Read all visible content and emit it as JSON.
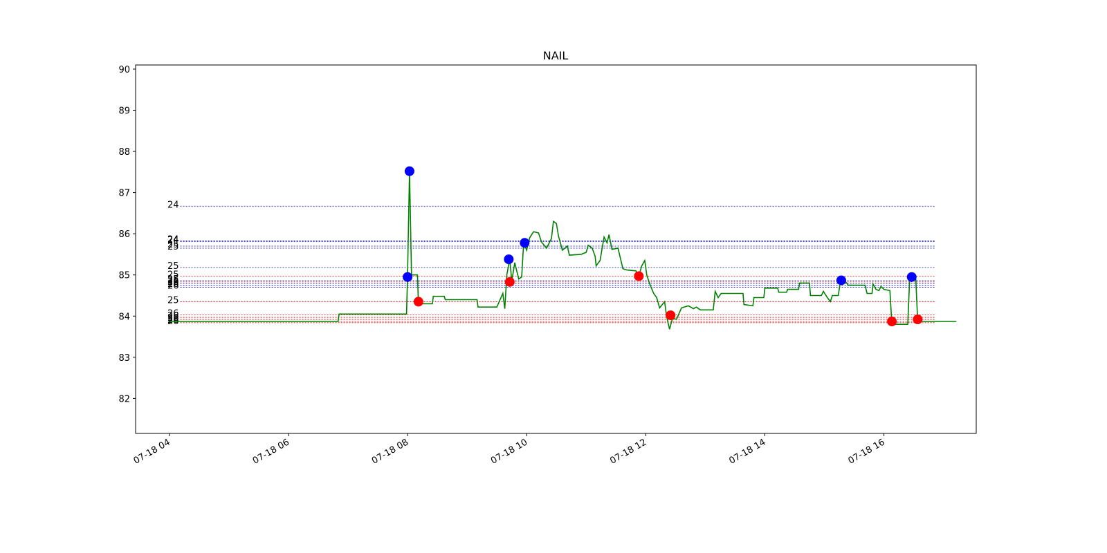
{
  "chart_data": {
    "type": "line",
    "title": "NAIL",
    "xlabel": "",
    "ylabel": "",
    "xlim": [
      "2024-07-18 03:26",
      "2024-07-18 17:33"
    ],
    "ylim": [
      81.15,
      90.1
    ],
    "grid": false,
    "y_ticks": [
      82,
      83,
      84,
      85,
      86,
      87,
      88,
      89,
      90
    ],
    "x_ticks": [
      {
        "t": "2024-07-18 04:00",
        "label": "07-18 04"
      },
      {
        "t": "2024-07-18 06:00",
        "label": "07-18 06"
      },
      {
        "t": "2024-07-18 08:00",
        "label": "07-18 08"
      },
      {
        "t": "2024-07-18 10:00",
        "label": "07-18 10"
      },
      {
        "t": "2024-07-18 12:00",
        "label": "07-18 12"
      },
      {
        "t": "2024-07-18 14:00",
        "label": "07-18 14"
      },
      {
        "t": "2024-07-18 16:00",
        "label": "07-18 16"
      }
    ],
    "series": [
      {
        "color": "#008000",
        "points": [
          [
            "2024-07-18 04:00",
            83.87
          ],
          [
            "2024-07-18 06:50",
            83.87
          ],
          [
            "2024-07-18 06:51",
            84.05
          ],
          [
            "2024-07-18 07:59",
            84.05
          ],
          [
            "2024-07-18 08:00",
            84.95
          ],
          [
            "2024-07-18 08:02",
            87.52
          ],
          [
            "2024-07-18 08:04",
            85.0
          ],
          [
            "2024-07-18 08:10",
            85.0
          ],
          [
            "2024-07-18 08:11",
            84.3
          ],
          [
            "2024-07-18 08:25",
            84.3
          ],
          [
            "2024-07-18 08:26",
            84.48
          ],
          [
            "2024-07-18 08:37",
            84.48
          ],
          [
            "2024-07-18 08:38",
            84.4
          ],
          [
            "2024-07-18 09:10",
            84.4
          ],
          [
            "2024-07-18 09:11",
            84.22
          ],
          [
            "2024-07-18 09:30",
            84.22
          ],
          [
            "2024-07-18 09:36",
            84.55
          ],
          [
            "2024-07-18 09:38",
            84.18
          ],
          [
            "2024-07-18 09:40",
            85.0
          ],
          [
            "2024-07-18 09:43",
            85.38
          ],
          [
            "2024-07-18 09:45",
            84.85
          ],
          [
            "2024-07-18 09:48",
            85.3
          ],
          [
            "2024-07-18 09:52",
            84.9
          ],
          [
            "2024-07-18 09:55",
            84.95
          ],
          [
            "2024-07-18 09:57",
            85.78
          ],
          [
            "2024-07-18 10:00",
            85.6
          ],
          [
            "2024-07-18 10:03",
            85.9
          ],
          [
            "2024-07-18 10:07",
            86.05
          ],
          [
            "2024-07-18 10:12",
            86.02
          ],
          [
            "2024-07-18 10:15",
            85.8
          ],
          [
            "2024-07-18 10:20",
            85.65
          ],
          [
            "2024-07-18 10:25",
            85.88
          ],
          [
            "2024-07-18 10:27",
            86.3
          ],
          [
            "2024-07-18 10:30",
            86.25
          ],
          [
            "2024-07-18 10:32",
            85.95
          ],
          [
            "2024-07-18 10:36",
            85.6
          ],
          [
            "2024-07-18 10:41",
            85.7
          ],
          [
            "2024-07-18 10:43",
            85.48
          ],
          [
            "2024-07-18 10:55",
            85.5
          ],
          [
            "2024-07-18 11:00",
            85.55
          ],
          [
            "2024-07-18 11:02",
            85.72
          ],
          [
            "2024-07-18 11:06",
            85.65
          ],
          [
            "2024-07-18 11:09",
            85.45
          ],
          [
            "2024-07-18 11:10",
            85.22
          ],
          [
            "2024-07-18 11:14",
            85.35
          ],
          [
            "2024-07-18 11:18",
            85.92
          ],
          [
            "2024-07-18 11:21",
            85.78
          ],
          [
            "2024-07-18 11:23",
            85.98
          ],
          [
            "2024-07-18 11:26",
            85.62
          ],
          [
            "2024-07-18 11:32",
            85.65
          ],
          [
            "2024-07-18 11:35",
            85.35
          ],
          [
            "2024-07-18 11:37",
            85.15
          ],
          [
            "2024-07-18 11:41",
            85.12
          ],
          [
            "2024-07-18 11:50",
            85.1
          ],
          [
            "2024-07-18 11:53",
            84.98
          ],
          [
            "2024-07-18 11:56",
            85.22
          ],
          [
            "2024-07-18 11:59",
            85.35
          ],
          [
            "2024-07-18 12:01",
            85.0
          ],
          [
            "2024-07-18 12:04",
            84.78
          ],
          [
            "2024-07-18 12:08",
            84.55
          ],
          [
            "2024-07-18 12:11",
            84.45
          ],
          [
            "2024-07-18 12:14",
            84.2
          ],
          [
            "2024-07-18 12:19",
            84.35
          ],
          [
            "2024-07-18 12:21",
            84.0
          ],
          [
            "2024-07-18 12:24",
            83.68
          ],
          [
            "2024-07-18 12:27",
            83.95
          ],
          [
            "2024-07-18 12:31",
            83.92
          ],
          [
            "2024-07-18 12:36",
            84.2
          ],
          [
            "2024-07-18 12:43",
            84.25
          ],
          [
            "2024-07-18 12:48",
            84.18
          ],
          [
            "2024-07-18 12:51",
            84.22
          ],
          [
            "2024-07-18 12:55",
            84.15
          ],
          [
            "2024-07-18 13:08",
            84.15
          ],
          [
            "2024-07-18 13:10",
            84.6
          ],
          [
            "2024-07-18 13:13",
            84.45
          ],
          [
            "2024-07-18 13:16",
            84.55
          ],
          [
            "2024-07-18 13:38",
            84.55
          ],
          [
            "2024-07-18 13:39",
            84.28
          ],
          [
            "2024-07-18 13:48",
            84.25
          ],
          [
            "2024-07-18 13:49",
            84.45
          ],
          [
            "2024-07-18 13:59",
            84.45
          ],
          [
            "2024-07-18 14:00",
            84.68
          ],
          [
            "2024-07-18 14:13",
            84.68
          ],
          [
            "2024-07-18 14:14",
            84.58
          ],
          [
            "2024-07-18 14:22",
            84.58
          ],
          [
            "2024-07-18 14:23",
            84.65
          ],
          [
            "2024-07-18 14:34",
            84.65
          ],
          [
            "2024-07-18 14:35",
            84.8
          ],
          [
            "2024-07-18 14:45",
            84.8
          ],
          [
            "2024-07-18 14:46",
            84.5
          ],
          [
            "2024-07-18 14:57",
            84.5
          ],
          [
            "2024-07-18 14:59",
            84.6
          ],
          [
            "2024-07-18 15:03",
            84.45
          ],
          [
            "2024-07-18 15:06",
            84.35
          ],
          [
            "2024-07-18 15:08",
            84.5
          ],
          [
            "2024-07-18 15:14",
            84.5
          ],
          [
            "2024-07-18 15:16",
            84.82
          ],
          [
            "2024-07-18 15:20",
            84.88
          ],
          [
            "2024-07-18 15:24",
            84.75
          ],
          [
            "2024-07-18 15:41",
            84.75
          ],
          [
            "2024-07-18 15:43",
            84.55
          ],
          [
            "2024-07-18 15:48",
            84.55
          ],
          [
            "2024-07-18 15:49",
            84.78
          ],
          [
            "2024-07-18 15:52",
            84.65
          ],
          [
            "2024-07-18 15:55",
            84.62
          ],
          [
            "2024-07-18 15:57",
            84.72
          ],
          [
            "2024-07-18 16:00",
            84.65
          ],
          [
            "2024-07-18 16:06",
            84.62
          ],
          [
            "2024-07-18 16:08",
            83.8
          ],
          [
            "2024-07-18 16:24",
            83.8
          ],
          [
            "2024-07-18 16:26",
            84.95
          ],
          [
            "2024-07-18 16:32",
            84.95
          ],
          [
            "2024-07-18 16:34",
            83.87
          ],
          [
            "2024-07-18 17:13",
            83.87
          ]
        ]
      }
    ],
    "buy_markers": {
      "color": "#0000ff",
      "points": [
        [
          "2024-07-18 08:00",
          84.95
        ],
        [
          "2024-07-18 08:02",
          87.52
        ],
        [
          "2024-07-18 09:42",
          85.38
        ],
        [
          "2024-07-18 09:58",
          85.78
        ],
        [
          "2024-07-18 15:17",
          84.87
        ],
        [
          "2024-07-18 16:28",
          84.95
        ]
      ]
    },
    "sell_markers": {
      "color": "#ff0000",
      "points": [
        [
          "2024-07-18 08:11",
          84.35
        ],
        [
          "2024-07-18 09:43",
          84.83
        ],
        [
          "2024-07-18 11:53",
          84.97
        ],
        [
          "2024-07-18 12:25",
          84.02
        ],
        [
          "2024-07-18 16:08",
          83.87
        ],
        [
          "2024-07-18 16:34",
          83.92
        ]
      ]
    },
    "level_lines": [
      {
        "y": 86.67,
        "color": "#0000aa",
        "label": "24"
      },
      {
        "y": 85.83,
        "color": "#0000aa",
        "label": "24"
      },
      {
        "y": 85.81,
        "color": "#0000aa",
        "label": "24"
      },
      {
        "y": 85.7,
        "color": "#0000aa",
        "label": "25"
      },
      {
        "y": 85.65,
        "color": "#0000aa",
        "label": "25"
      },
      {
        "y": 85.18,
        "color": "#0000aa",
        "label": "25"
      },
      {
        "y": 84.97,
        "color": "#cc0000",
        "label": "25"
      },
      {
        "y": 84.86,
        "color": "#0000aa",
        "label": "25"
      },
      {
        "y": 84.83,
        "color": "#cc0000",
        "label": "26"
      },
      {
        "y": 84.79,
        "color": "#0000aa",
        "label": "26"
      },
      {
        "y": 84.74,
        "color": "#0000aa",
        "label": "26"
      },
      {
        "y": 84.7,
        "color": "#0000aa",
        "label": "26"
      },
      {
        "y": 84.35,
        "color": "#cc0000",
        "label": "25"
      },
      {
        "y": 84.03,
        "color": "#cc0000",
        "label": "26"
      },
      {
        "y": 83.97,
        "color": "#cc0000",
        "label": "26"
      },
      {
        "y": 83.92,
        "color": "#cc0000",
        "label": "26"
      },
      {
        "y": 83.87,
        "color": "#cc0000",
        "label": "26"
      },
      {
        "y": 83.84,
        "color": "#cc0000",
        "label": "26"
      }
    ]
  }
}
